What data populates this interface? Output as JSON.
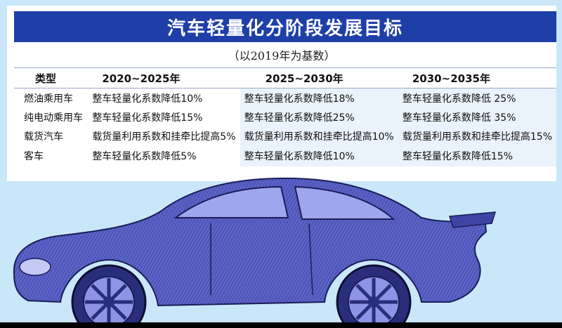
{
  "title": "汽车轻量化分阶段发展目标",
  "subtitle": "（以2019年为基数）",
  "headers": [
    "类型",
    "2020~2025年",
    "2025~2030年",
    "2030~2035年"
  ],
  "rows": [
    [
      "燃油乘用车",
      "整车轻量化系数降低10%",
      "整车轻量化系数降低18%",
      "整车轻量化系数降低 25%"
    ],
    [
      "纯电动乘用车",
      "整车轻量化系数降低15%",
      "整车轻量化系数降低25%",
      "整车轻量化系数降低 35%"
    ],
    [
      "载货汽车",
      "载货量利用系数和挂牵比提高5%",
      "载货量利用系数和挂牵比提高10%",
      "载货量利用系数和挂牵比提高15%"
    ],
    [
      "客车",
      "整车轻量化系数降低5%",
      "整车轻量化系数降低10%",
      "整车轻量化系数降低15%"
    ]
  ],
  "colors": {
    "title_bar": "#1f3fa8",
    "background": "#c9e7f8",
    "car_body": "#4a52b8"
  },
  "illustration": {
    "car": "sports-car-icon"
  }
}
